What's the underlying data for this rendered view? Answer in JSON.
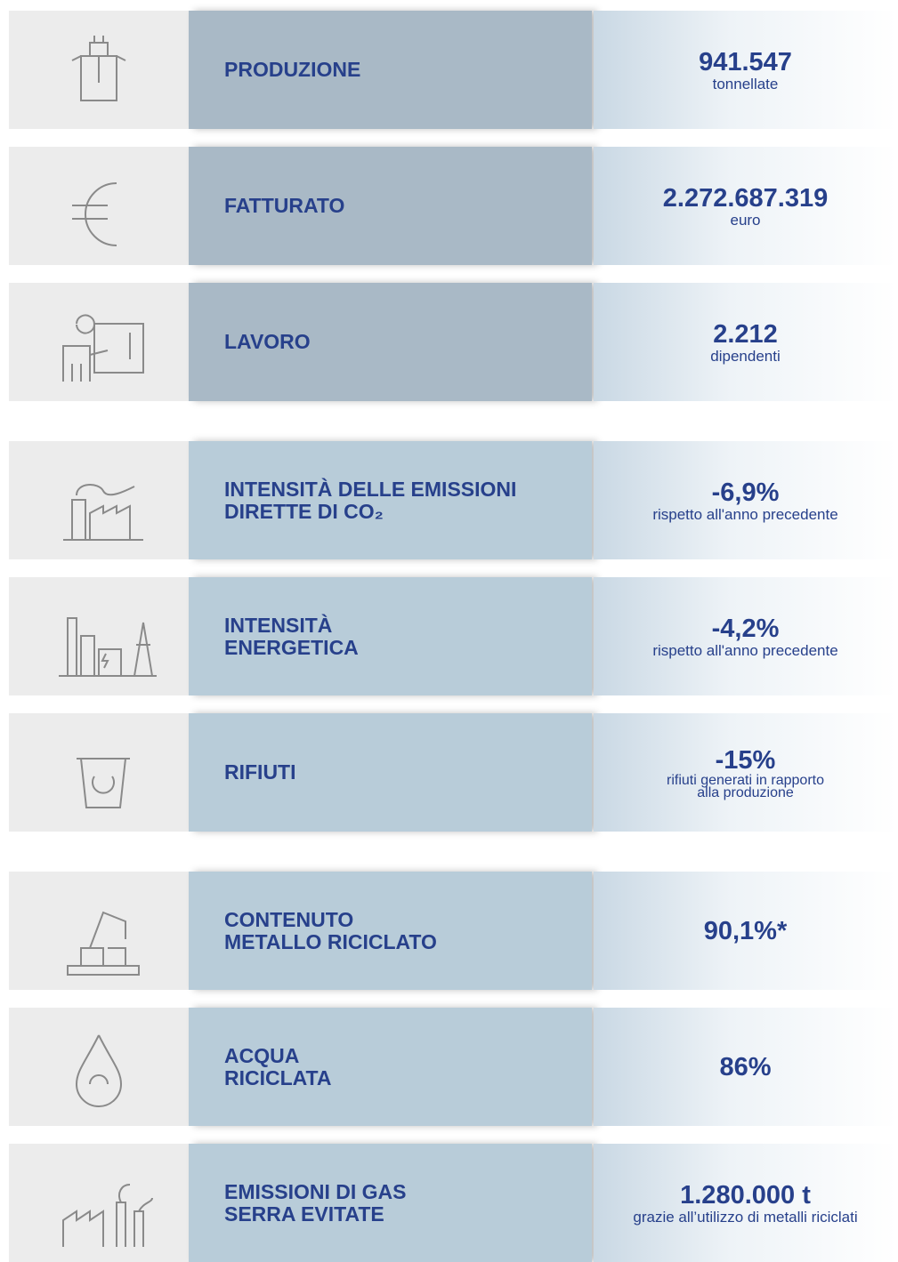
{
  "rows": [
    {
      "label": [
        "PRODUZIONE"
      ],
      "value": "941.547",
      "unit": [
        "tonnellate"
      ],
      "color": "#a9b9c6"
    },
    {
      "label": [
        "FATTURATO"
      ],
      "value": "2.272.687.319",
      "unit": [
        "euro"
      ],
      "color": "#a9b9c6"
    },
    {
      "label": [
        "LAVORO"
      ],
      "value": "2.212",
      "unit": [
        "dipendenti"
      ],
      "color": "#a9b9c6"
    },
    {
      "label": [
        "INTENSITÀ DELLE EMISSIONI",
        "DIRETTE DI CO₂"
      ],
      "value": "-6,9%",
      "unit": [
        "rispetto all'anno precedente"
      ],
      "color": "#b8ccd9"
    },
    {
      "label": [
        "INTENSITÀ",
        "ENERGETICA"
      ],
      "value": "-4,2%",
      "unit": [
        "rispetto all'anno precedente"
      ],
      "color": "#b8ccd9"
    },
    {
      "label": [
        "RIFIUTI"
      ],
      "value": "-15%",
      "unit": [
        "rifiuti generati in rapporto",
        "alla produzione"
      ],
      "color": "#b8ccd9"
    },
    {
      "label": [
        "CONTENUTO",
        "METALLO RICICLATO"
      ],
      "value": "90,1%*",
      "unit": [],
      "color": "#b8ccd9"
    },
    {
      "label": [
        "ACQUA",
        "RICICLATA"
      ],
      "value": "86%",
      "unit": [],
      "color": "#b8ccd9"
    },
    {
      "label": [
        "EMISSIONI DI GAS",
        "SERRA EVITATE"
      ],
      "value": "1.280.000 t",
      "unit": [
        "grazie all’utilizzo di metalli riciclati"
      ],
      "color": "#b8ccd9"
    }
  ]
}
